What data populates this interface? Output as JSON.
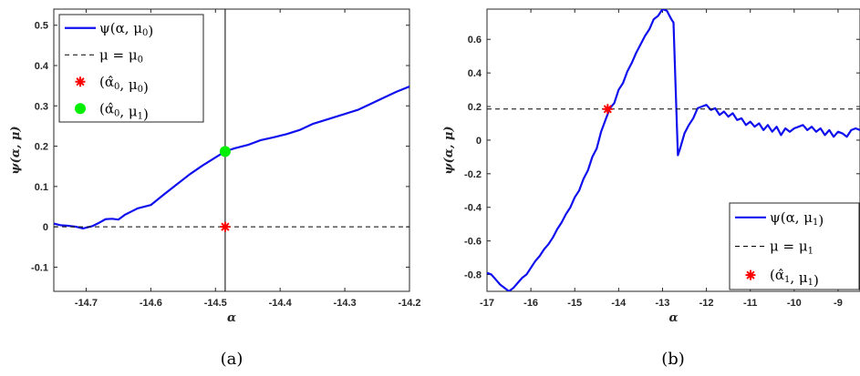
{
  "chart_data": [
    {
      "type": "line",
      "caption": "(a)",
      "xlabel": "α",
      "ylabel": "ψ(α, μ)",
      "xlim": [
        -14.75,
        -14.2
      ],
      "ylim": [
        -0.16,
        0.54
      ],
      "xticks": [
        -14.7,
        -14.6,
        -14.5,
        -14.4,
        -14.3,
        -14.2
      ],
      "xtick_labels": [
        "-14.7",
        "-14.6",
        "-14.5",
        "-14.4",
        "-14.3",
        "-14.2"
      ],
      "yticks": [
        -0.1,
        0,
        0.1,
        0.2,
        0.3,
        0.4,
        0.5
      ],
      "ytick_labels": [
        "-0.1",
        "0",
        "0.1",
        "0.2",
        "0.3",
        "0.4",
        "0.5"
      ],
      "legend_position": "top-left",
      "series": [
        {
          "name": "ψ(α, μ0)",
          "legend_main": "ψ(α, μ",
          "legend_sub": "0",
          "legend_tail": ")",
          "style": "solid",
          "color": "#1010ee",
          "x": [
            -14.75,
            -14.74,
            -14.73,
            -14.715,
            -14.705,
            -14.69,
            -14.68,
            -14.67,
            -14.66,
            -14.65,
            -14.64,
            -14.63,
            -14.62,
            -14.6,
            -14.58,
            -14.56,
            -14.54,
            -14.52,
            -14.5,
            -14.485,
            -14.47,
            -14.45,
            -14.43,
            -14.41,
            -14.39,
            -14.37,
            -14.35,
            -14.33,
            -14.3,
            -14.28,
            -14.26,
            -14.24,
            -14.22,
            -14.2
          ],
          "y": [
            0.008,
            0.004,
            0.003,
            0.0,
            -0.004,
            0.002,
            0.01,
            0.019,
            0.02,
            0.018,
            0.03,
            0.038,
            0.046,
            0.054,
            0.08,
            0.105,
            0.13,
            0.152,
            0.172,
            0.187,
            0.195,
            0.203,
            0.215,
            0.222,
            0.23,
            0.24,
            0.255,
            0.265,
            0.28,
            0.29,
            0.305,
            0.32,
            0.335,
            0.348
          ]
        },
        {
          "name": "μ = μ0",
          "legend_main": "μ = μ",
          "legend_sub": "0",
          "legend_tail": "",
          "style": "dashed",
          "color": "#000000",
          "y_const": 0
        },
        {
          "name": "(α̂0, μ0)",
          "legend_main": "(α̂",
          "legend_sub": "0",
          "legend_tail": ", μ",
          "legend_sub2": "0",
          "legend_end": ")",
          "style": "marker-star",
          "color": "#ff0000",
          "x": [
            -14.485
          ],
          "y": [
            0.0
          ]
        },
        {
          "name": "(α̂0, μ1)",
          "legend_main": "(α̂",
          "legend_sub": "0",
          "legend_tail": ", μ",
          "legend_sub2": "1",
          "legend_end": ")",
          "style": "marker-dot",
          "color": "#00ee00",
          "x": [
            -14.485
          ],
          "y": [
            0.187
          ]
        }
      ],
      "vline_x": -14.485
    },
    {
      "type": "line",
      "caption": "(b)",
      "xlabel": "α",
      "ylabel": "ψ(α, μ)",
      "xlim": [
        -17,
        -8.5
      ],
      "ylim": [
        -0.9,
        0.78
      ],
      "xticks": [
        -17,
        -16,
        -15,
        -14,
        -13,
        -12,
        -11,
        -10,
        -9
      ],
      "xtick_labels": [
        "-17",
        "-16",
        "-15",
        "-14",
        "-13",
        "-12",
        "-11",
        "-10",
        "-9"
      ],
      "yticks": [
        -0.8,
        -0.6,
        -0.4,
        -0.2,
        0,
        0.2,
        0.4,
        0.6
      ],
      "ytick_labels": [
        "-0.8",
        "-0.6",
        "-0.4",
        "-0.2",
        "0",
        "0.2",
        "0.4",
        "0.6"
      ],
      "legend_position": "bottom-right",
      "series": [
        {
          "name": "ψ(α, μ1)",
          "legend_main": "ψ(α, μ",
          "legend_sub": "1",
          "legend_tail": ")",
          "style": "solid",
          "color": "#1010ee",
          "x": [
            -17,
            -16.9,
            -16.8,
            -16.7,
            -16.6,
            -16.5,
            -16.4,
            -16.3,
            -16.2,
            -16.1,
            -16.0,
            -15.9,
            -15.8,
            -15.7,
            -15.6,
            -15.5,
            -15.4,
            -15.3,
            -15.2,
            -15.1,
            -15.0,
            -14.9,
            -14.8,
            -14.7,
            -14.6,
            -14.5,
            -14.4,
            -14.3,
            -14.2,
            -14.1,
            -14.0,
            -13.9,
            -13.8,
            -13.7,
            -13.6,
            -13.5,
            -13.4,
            -13.3,
            -13.2,
            -13.1,
            -13.0,
            -12.9,
            -12.8,
            -12.75,
            -12.7,
            -12.65,
            -12.6,
            -12.5,
            -12.4,
            -12.3,
            -12.2,
            -12.1,
            -12.0,
            -11.9,
            -11.8,
            -11.7,
            -11.6,
            -11.5,
            -11.4,
            -11.3,
            -11.2,
            -11.1,
            -11.0,
            -10.9,
            -10.8,
            -10.7,
            -10.6,
            -10.5,
            -10.4,
            -10.3,
            -10.2,
            -10.1,
            -10.0,
            -9.9,
            -9.8,
            -9.7,
            -9.6,
            -9.5,
            -9.4,
            -9.3,
            -9.2,
            -9.1,
            -9.0,
            -8.9,
            -8.8,
            -8.7,
            -8.6,
            -8.5
          ],
          "y": [
            -0.79,
            -0.8,
            -0.83,
            -0.86,
            -0.88,
            -0.9,
            -0.88,
            -0.85,
            -0.82,
            -0.8,
            -0.76,
            -0.72,
            -0.69,
            -0.65,
            -0.62,
            -0.58,
            -0.53,
            -0.49,
            -0.44,
            -0.4,
            -0.34,
            -0.3,
            -0.23,
            -0.18,
            -0.1,
            -0.05,
            0.05,
            0.12,
            0.19,
            0.22,
            0.3,
            0.34,
            0.41,
            0.46,
            0.52,
            0.57,
            0.62,
            0.66,
            0.72,
            0.74,
            0.78,
            0.77,
            0.72,
            0.7,
            0.3,
            -0.09,
            -0.05,
            0.04,
            0.09,
            0.13,
            0.19,
            0.2,
            0.21,
            0.18,
            0.19,
            0.15,
            0.17,
            0.14,
            0.16,
            0.12,
            0.13,
            0.09,
            0.11,
            0.08,
            0.1,
            0.06,
            0.09,
            0.05,
            0.08,
            0.03,
            0.07,
            0.05,
            0.07,
            0.08,
            0.09,
            0.06,
            0.08,
            0.05,
            0.07,
            0.03,
            0.06,
            0.02,
            0.05,
            0.04,
            0.02,
            0.06,
            0.07,
            0.06
          ]
        },
        {
          "name": "μ = μ1",
          "legend_main": "μ = μ",
          "legend_sub": "1",
          "legend_tail": "",
          "style": "dashed",
          "color": "#000000",
          "y_const": 0.185
        },
        {
          "name": "(α̂1, μ1)",
          "legend_main": "(α̂",
          "legend_sub": "1",
          "legend_tail": ", μ",
          "legend_sub2": "1",
          "legend_end": ")",
          "style": "marker-star",
          "color": "#ff0000",
          "x": [
            -14.25
          ],
          "y": [
            0.185
          ]
        }
      ]
    }
  ]
}
